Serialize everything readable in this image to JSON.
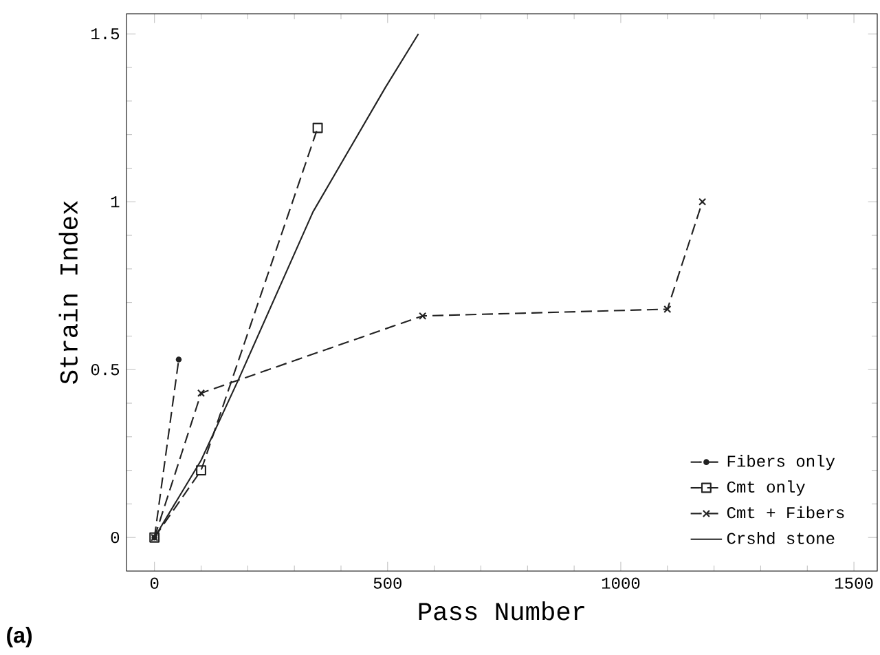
{
  "chart_data": {
    "type": "line",
    "xlabel": "Pass Number",
    "ylabel": "Strain Index",
    "xlim": [
      -60,
      1550
    ],
    "ylim": [
      -0.1,
      1.56
    ],
    "xticks": [
      0,
      500,
      1000,
      1500
    ],
    "yticks": [
      0,
      0.5,
      1,
      1.5
    ],
    "legend": "bottom right",
    "grid": false,
    "annotations": [
      "(a)"
    ],
    "series": [
      {
        "name": "Fibers only",
        "color": "#222222",
        "marker": "circle",
        "line_style": "dashed",
        "x": [
          0,
          52
        ],
        "values": [
          0,
          0.53
        ]
      },
      {
        "name": "Cmt only",
        "color": "#222222",
        "marker": "square",
        "line_style": "dashed",
        "x": [
          0,
          100,
          350
        ],
        "values": [
          0,
          0.2,
          1.22
        ]
      },
      {
        "name": "Cmt + Fibers",
        "color": "#222222",
        "marker": "cross",
        "line_style": "dashed",
        "x": [
          0,
          100,
          575,
          1100,
          1175
        ],
        "values": [
          0,
          0.43,
          0.66,
          0.68,
          1.0
        ]
      },
      {
        "name": "Crshd stone",
        "color": "#222222",
        "marker": "none",
        "line_style": "solid",
        "x": [
          0,
          100,
          180,
          340,
          495,
          566
        ],
        "values": [
          0,
          0.23,
          0.47,
          0.97,
          1.34,
          1.5
        ]
      }
    ]
  }
}
